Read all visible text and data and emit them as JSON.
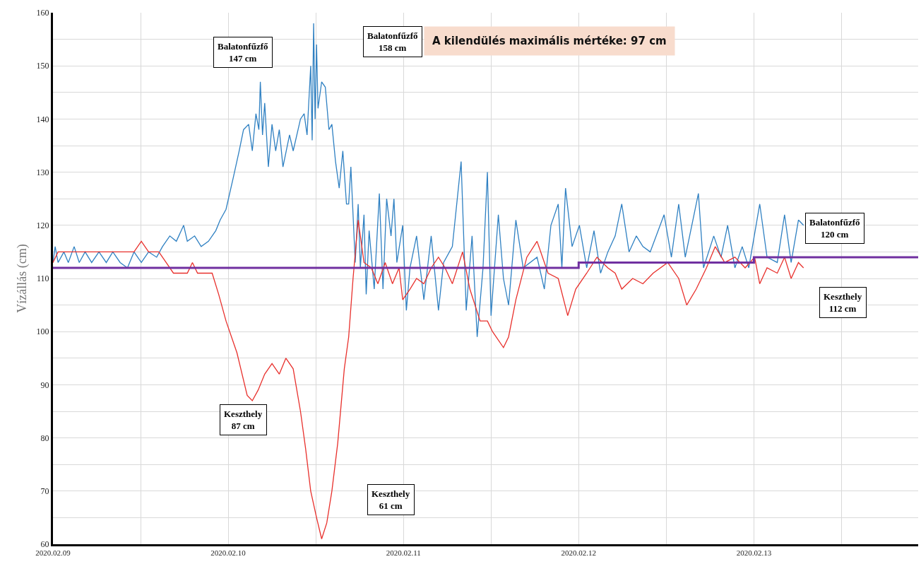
{
  "chart_data": {
    "type": "line",
    "ylabel": "Vízállás (cm)",
    "annotations": [
      "Balatonfűzfő\n147 cm",
      "Balatonfűzfő\n158 cm",
      "A kilendülés maximális mértéke: 97 cm",
      "Balatonfűzfő\n120 cm",
      "Keszthely\n112 cm",
      "Keszthely\n87 cm",
      "Keszthely\n61 cm"
    ],
    "xlim": [
      "2020-02-09T00:00",
      "2020-02-13T22:30"
    ],
    "xticks": [
      {
        "value": "2020-02-09",
        "label": "2020.02.09"
      },
      {
        "value": "2020-02-09T12:00",
        "label": null
      },
      {
        "value": "2020-02-10",
        "label": "2020.02.10"
      },
      {
        "value": "2020-02-10T12:00",
        "label": null
      },
      {
        "value": "2020-02-11",
        "label": "2020.02.11"
      },
      {
        "value": "2020-02-11T12:00",
        "label": null
      },
      {
        "value": "2020-02-12",
        "label": "2020.02.12"
      },
      {
        "value": "2020-02-12T12:00",
        "label": null
      },
      {
        "value": "2020-02-13",
        "label": "2020.02.13"
      },
      {
        "value": "2020-02-13T12:00",
        "label": null
      }
    ],
    "ylim": [
      60,
      160
    ],
    "yticks": [
      60,
      {
        "value": 65,
        "label": null
      },
      70,
      {
        "value": 75,
        "label": null
      },
      80,
      {
        "value": 85,
        "label": null
      },
      90,
      {
        "value": 95,
        "label": null
      },
      100,
      {
        "value": 105,
        "label": null
      },
      110,
      {
        "value": 115,
        "label": null
      },
      120,
      {
        "value": 125,
        "label": null
      },
      130,
      {
        "value": 135,
        "label": null
      },
      140,
      {
        "value": 145,
        "label": null
      },
      150,
      {
        "value": 155,
        "label": null
      },
      160
    ],
    "grid": true,
    "marker": "none",
    "line_style": "solid",
    "series": [
      {
        "color": "#2f80c2",
        "x": [
          "2020-02-09T00:00",
          "2020-02-09T00:18",
          "2020-02-09T00:42",
          "2020-02-09T01:30",
          "2020-02-09T02:06",
          "2020-02-09T02:54",
          "2020-02-09T03:36",
          "2020-02-09T04:24",
          "2020-02-09T05:18",
          "2020-02-09T06:18",
          "2020-02-09T07:18",
          "2020-02-09T08:12",
          "2020-02-09T09:12",
          "2020-02-09T10:12",
          "2020-02-09T11:06",
          "2020-02-09T12:06",
          "2020-02-09T13:06",
          "2020-02-09T14:12",
          "2020-02-09T15:00",
          "2020-02-09T16:00",
          "2020-02-09T16:54",
          "2020-02-09T17:54",
          "2020-02-09T18:24",
          "2020-02-09T19:24",
          "2020-02-09T20:18",
          "2020-02-09T21:18",
          "2020-02-09T22:18",
          "2020-02-09T22:54",
          "2020-02-09T23:42",
          "2020-02-10T00:42",
          "2020-02-10T01:30",
          "2020-02-10T02:06",
          "2020-02-10T02:48",
          "2020-02-10T03:18",
          "2020-02-10T03:48",
          "2020-02-10T04:12",
          "2020-02-10T04:24",
          "2020-02-10T04:42",
          "2020-02-10T05:00",
          "2020-02-10T05:30",
          "2020-02-10T06:00",
          "2020-02-10T06:30",
          "2020-02-10T07:00",
          "2020-02-10T07:30",
          "2020-02-10T08:24",
          "2020-02-10T08:54",
          "2020-02-10T09:54",
          "2020-02-10T10:24",
          "2020-02-10T10:48",
          "2020-02-10T11:18",
          "2020-02-10T11:30",
          "2020-02-10T11:42",
          "2020-02-10T11:54",
          "2020-02-10T12:06",
          "2020-02-10T12:18",
          "2020-02-10T12:48",
          "2020-02-10T13:18",
          "2020-02-10T13:48",
          "2020-02-10T14:12",
          "2020-02-10T14:42",
          "2020-02-10T15:12",
          "2020-02-10T15:42",
          "2020-02-10T16:12",
          "2020-02-10T16:30",
          "2020-02-10T16:48",
          "2020-02-10T17:24",
          "2020-02-10T17:48",
          "2020-02-10T18:06",
          "2020-02-10T18:36",
          "2020-02-10T18:54",
          "2020-02-10T19:18",
          "2020-02-10T20:00",
          "2020-02-10T20:42",
          "2020-02-10T21:12",
          "2020-02-10T21:42",
          "2020-02-10T22:18",
          "2020-02-10T22:42",
          "2020-02-10T23:06",
          "2020-02-10T23:54",
          "2020-02-11T00:24",
          "2020-02-11T00:54",
          "2020-02-11T01:48",
          "2020-02-11T02:48",
          "2020-02-11T03:48",
          "2020-02-11T04:48",
          "2020-02-11T05:30",
          "2020-02-11T06:42",
          "2020-02-11T07:54",
          "2020-02-11T08:36",
          "2020-02-11T09:24",
          "2020-02-11T10:06",
          "2020-02-11T10:54",
          "2020-02-11T11:30",
          "2020-02-11T12:00",
          "2020-02-11T13:00",
          "2020-02-11T13:42",
          "2020-02-11T14:24",
          "2020-02-11T15:24",
          "2020-02-11T16:24",
          "2020-02-11T18:18",
          "2020-02-11T19:18",
          "2020-02-11T20:12",
          "2020-02-11T21:12",
          "2020-02-11T21:42",
          "2020-02-11T22:12",
          "2020-02-11T23:06",
          "2020-02-12T00:06",
          "2020-02-12T01:06",
          "2020-02-12T02:06",
          "2020-02-12T03:00",
          "2020-02-12T04:00",
          "2020-02-12T05:00",
          "2020-02-12T05:54",
          "2020-02-12T06:54",
          "2020-02-12T07:54",
          "2020-02-12T08:48",
          "2020-02-12T09:48",
          "2020-02-12T11:42",
          "2020-02-12T12:42",
          "2020-02-12T13:42",
          "2020-02-12T14:36",
          "2020-02-12T16:24",
          "2020-02-12T17:06",
          "2020-02-12T18:30",
          "2020-02-12T19:30",
          "2020-02-12T20:24",
          "2020-02-12T21:24",
          "2020-02-12T22:24",
          "2020-02-12T23:18",
          "2020-02-13T00:48",
          "2020-02-13T01:48",
          "2020-02-13T03:12",
          "2020-02-13T04:12",
          "2020-02-13T05:06",
          "2020-02-13T06:06",
          "2020-02-13T06:48"
        ],
        "values": [
          113,
          116,
          113,
          115,
          113,
          116,
          113,
          115,
          113,
          115,
          113,
          115,
          113,
          112,
          115,
          113,
          115,
          114,
          116,
          118,
          117,
          120,
          117,
          118,
          116,
          117,
          119,
          121,
          123,
          129,
          134,
          138,
          139,
          134,
          141,
          138,
          147,
          137,
          143,
          131,
          139,
          134,
          138,
          131,
          137,
          134,
          140,
          141,
          137,
          150,
          136,
          158,
          140,
          154,
          142,
          147,
          146,
          138,
          139,
          132,
          127,
          134,
          124,
          124,
          131,
          113,
          124,
          112,
          122,
          107,
          119,
          108,
          126,
          108,
          125,
          118,
          125,
          113,
          120,
          104,
          112,
          118,
          106,
          118,
          104,
          113,
          116,
          132,
          104,
          118,
          99,
          112,
          130,
          103,
          122,
          110,
          105,
          121,
          112,
          114,
          108,
          120,
          124,
          112,
          127,
          116,
          120,
          112,
          119,
          111,
          115,
          118,
          124,
          115,
          118,
          116,
          115,
          122,
          114,
          124,
          114,
          126,
          112,
          118,
          114,
          120,
          112,
          116,
          112,
          124,
          114,
          113,
          122,
          113,
          121,
          120
        ]
      },
      {
        "color": "#e8302c",
        "x": [
          "2020-02-09T00:00",
          "2020-02-09T00:42",
          "2020-02-09T04:24",
          "2020-02-09T11:06",
          "2020-02-09T12:06",
          "2020-02-09T13:06",
          "2020-02-09T14:30",
          "2020-02-09T15:30",
          "2020-02-09T16:30",
          "2020-02-09T18:24",
          "2020-02-09T19:06",
          "2020-02-09T19:48",
          "2020-02-09T21:48",
          "2020-02-09T22:42",
          "2020-02-09T23:42",
          "2020-02-10T01:12",
          "2020-02-10T02:36",
          "2020-02-10T03:18",
          "2020-02-10T04:06",
          "2020-02-10T05:00",
          "2020-02-10T06:00",
          "2020-02-10T07:00",
          "2020-02-10T07:54",
          "2020-02-10T08:54",
          "2020-02-10T09:54",
          "2020-02-10T10:36",
          "2020-02-10T11:18",
          "2020-02-10T12:06",
          "2020-02-10T12:48",
          "2020-02-10T13:30",
          "2020-02-10T14:12",
          "2020-02-10T15:00",
          "2020-02-10T15:54",
          "2020-02-10T16:30",
          "2020-02-10T17:06",
          "2020-02-10T17:48",
          "2020-02-10T18:36",
          "2020-02-10T19:36",
          "2020-02-10T20:30",
          "2020-02-10T21:30",
          "2020-02-10T22:30",
          "2020-02-10T23:24",
          "2020-02-10T23:54",
          "2020-02-11T00:54",
          "2020-02-11T01:48",
          "2020-02-11T02:48",
          "2020-02-11T03:48",
          "2020-02-11T04:48",
          "2020-02-11T05:42",
          "2020-02-11T06:42",
          "2020-02-11T08:06",
          "2020-02-11T09:06",
          "2020-02-11T10:30",
          "2020-02-11T11:30",
          "2020-02-11T12:12",
          "2020-02-11T13:42",
          "2020-02-11T14:24",
          "2020-02-11T15:24",
          "2020-02-11T16:54",
          "2020-02-11T18:18",
          "2020-02-11T19:48",
          "2020-02-11T21:12",
          "2020-02-11T22:30",
          "2020-02-11T23:36",
          "2020-02-12T01:06",
          "2020-02-12T02:30",
          "2020-02-12T04:00",
          "2020-02-12T05:00",
          "2020-02-12T05:54",
          "2020-02-12T07:24",
          "2020-02-12T08:48",
          "2020-02-12T10:12",
          "2020-02-12T12:12",
          "2020-02-12T13:42",
          "2020-02-12T14:48",
          "2020-02-12T16:06",
          "2020-02-12T17:30",
          "2020-02-12T18:42",
          "2020-02-12T20:00",
          "2020-02-12T21:24",
          "2020-02-12T22:48",
          "2020-02-13T00:06",
          "2020-02-13T00:48",
          "2020-02-13T01:48",
          "2020-02-13T03:12",
          "2020-02-13T04:12",
          "2020-02-13T05:06",
          "2020-02-13T06:06",
          "2020-02-13T06:48"
        ],
        "values": [
          113,
          115,
          115,
          115,
          117,
          115,
          115,
          113,
          111,
          111,
          113,
          111,
          111,
          107,
          102,
          96,
          88,
          87,
          89,
          92,
          94,
          92,
          95,
          93,
          85,
          78,
          70,
          65,
          61,
          64,
          70,
          79,
          93,
          99,
          110,
          121,
          113,
          112,
          109,
          113,
          109,
          112,
          106,
          108,
          110,
          109,
          112,
          114,
          112,
          109,
          115,
          108,
          102,
          102,
          100,
          97,
          99,
          106,
          114,
          117,
          111,
          110,
          103,
          108,
          111,
          114,
          112,
          111,
          108,
          110,
          109,
          111,
          113,
          110,
          105,
          108,
          112,
          116,
          113,
          114,
          112,
          114,
          109,
          112,
          111,
          114,
          110,
          113,
          112
        ]
      },
      {
        "type": "step",
        "color": "#7030a0",
        "x": [
          "2020-02-09T00:00",
          "2020-02-12T00:00",
          "2020-02-13T00:00",
          "2020-02-13T22:30"
        ],
        "values": [
          112,
          113,
          114,
          114
        ]
      }
    ]
  }
}
